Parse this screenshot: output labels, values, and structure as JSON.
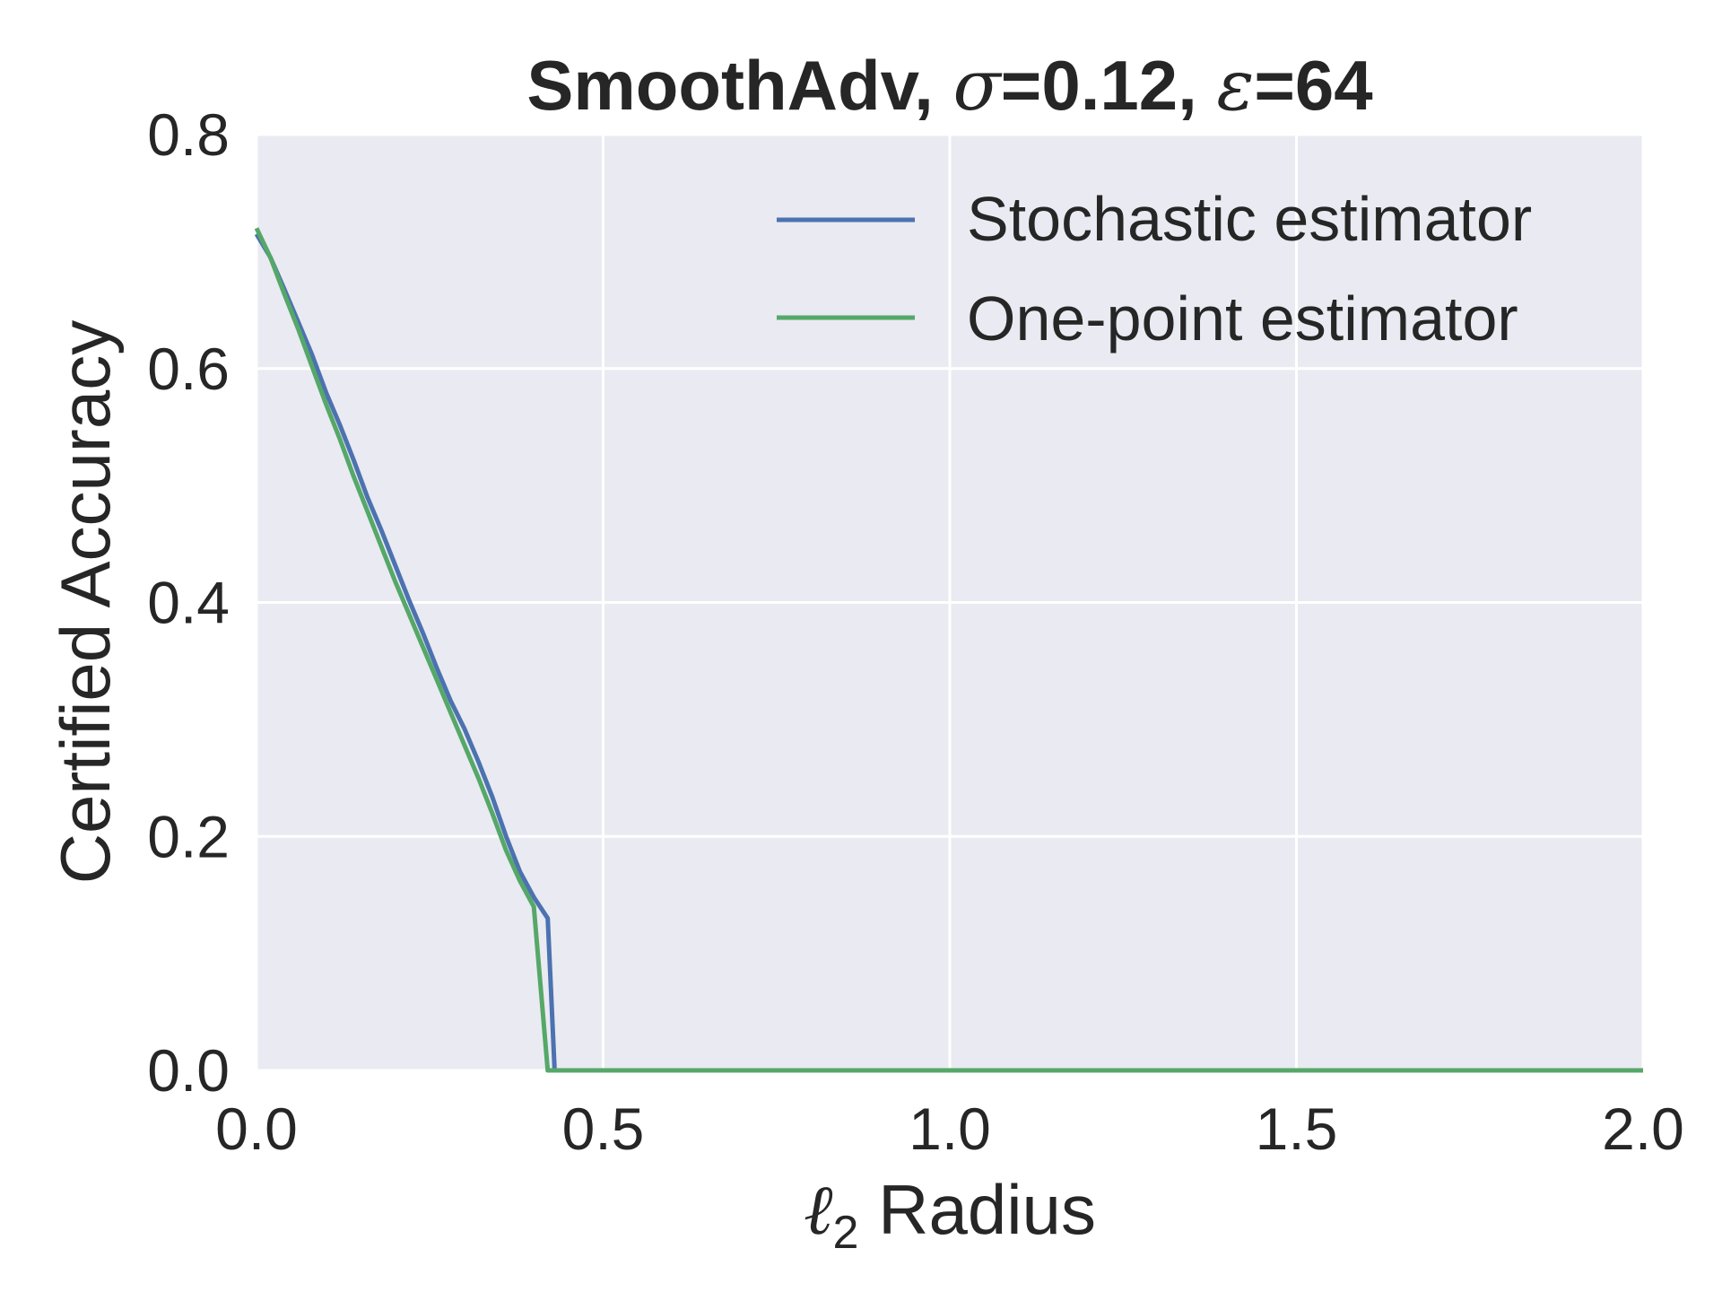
{
  "chart_data": {
    "type": "line",
    "title": {
      "prefix": "SmoothAdv, ",
      "sigma_symbol": "σ",
      "sigma_text": "=0.12, ",
      "eps_symbol": "ε",
      "eps_text": "=64"
    },
    "xlabel": {
      "symbol": "ℓ",
      "subscript": "2",
      "text": " Radius"
    },
    "ylabel": "Certified Accuracy",
    "xlim": [
      0.0,
      2.0
    ],
    "ylim": [
      0.0,
      0.8
    ],
    "xticks": [
      "0.0",
      "0.5",
      "1.0",
      "1.5",
      "2.0"
    ],
    "yticks": [
      "0.0",
      "0.2",
      "0.4",
      "0.6",
      "0.8"
    ],
    "grid": true,
    "legend_position": "top-right",
    "series": [
      {
        "name": "Stochastic estimator",
        "color": "#4C72B0",
        "x": [
          0.0,
          0.02,
          0.04,
          0.06,
          0.08,
          0.1,
          0.12,
          0.14,
          0.16,
          0.18,
          0.2,
          0.22,
          0.24,
          0.26,
          0.28,
          0.3,
          0.32,
          0.34,
          0.36,
          0.38,
          0.4,
          0.42,
          0.43,
          0.44,
          2.0
        ],
        "y": [
          0.715,
          0.695,
          0.668,
          0.64,
          0.612,
          0.58,
          0.552,
          0.522,
          0.49,
          0.462,
          0.432,
          0.402,
          0.374,
          0.344,
          0.316,
          0.292,
          0.264,
          0.234,
          0.2,
          0.17,
          0.148,
          0.13,
          0.0,
          0.0,
          0.0
        ]
      },
      {
        "name": "One-point estimator",
        "color": "#55A868",
        "x": [
          0.0,
          0.02,
          0.04,
          0.06,
          0.08,
          0.1,
          0.12,
          0.14,
          0.16,
          0.18,
          0.2,
          0.22,
          0.24,
          0.26,
          0.28,
          0.3,
          0.32,
          0.34,
          0.36,
          0.38,
          0.4,
          0.42,
          0.43,
          0.44,
          2.0
        ],
        "y": [
          0.72,
          0.695,
          0.664,
          0.634,
          0.602,
          0.57,
          0.54,
          0.508,
          0.478,
          0.448,
          0.418,
          0.39,
          0.362,
          0.334,
          0.306,
          0.278,
          0.25,
          0.22,
          0.188,
          0.162,
          0.14,
          0.0,
          0.0,
          0.0,
          0.0
        ]
      }
    ]
  }
}
